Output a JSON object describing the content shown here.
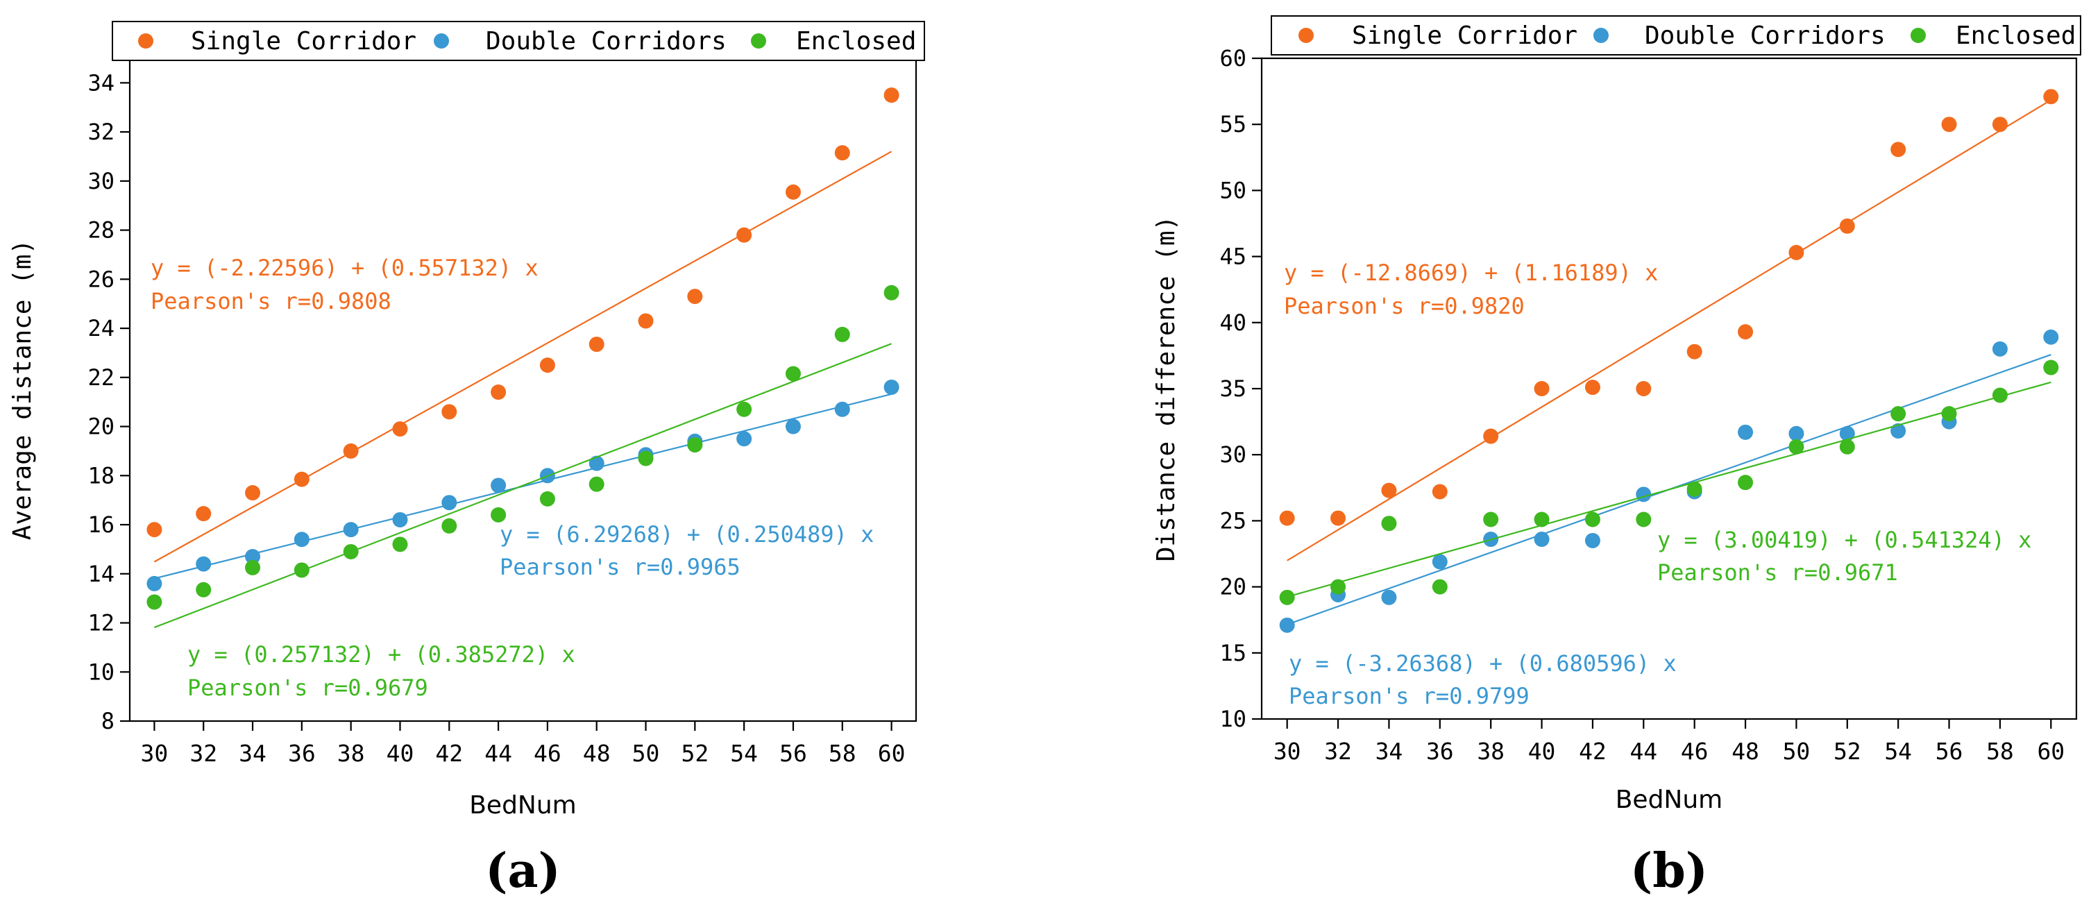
{
  "colors": {
    "single": "#f26b1d",
    "double": "#3a98d2",
    "enclosed": "#3db81e",
    "axis": "#000000"
  },
  "legend_labels": {
    "single": "Single Corridor",
    "double": "Double Corridors",
    "enclosed": "Enclosed"
  },
  "chart_data": [
    {
      "panel_label": "(a)",
      "type": "scatter",
      "title": "",
      "xlabel": "BedNum",
      "ylabel": "Average distance (m)",
      "xlim": [
        29,
        61
      ],
      "ylim": [
        8,
        35
      ],
      "xticks": [
        30,
        32,
        34,
        36,
        38,
        40,
        42,
        44,
        46,
        48,
        50,
        52,
        54,
        56,
        58,
        60
      ],
      "yticks": [
        8,
        10,
        12,
        14,
        16,
        18,
        20,
        22,
        24,
        26,
        28,
        30,
        32,
        34
      ],
      "grid": false,
      "legend_position": "top",
      "x": [
        30,
        32,
        34,
        36,
        38,
        40,
        42,
        44,
        46,
        48,
        50,
        52,
        54,
        56,
        58,
        60
      ],
      "series": [
        {
          "key": "single",
          "name": "Single Corridor",
          "values": [
            15.8,
            16.45,
            17.3,
            17.85,
            19.0,
            19.9,
            20.6,
            21.4,
            22.5,
            23.35,
            24.3,
            25.3,
            27.8,
            29.55,
            31.15,
            33.5
          ],
          "fit": {
            "intercept": -2.22596,
            "slope": 0.557132
          },
          "equation": "y = (-2.22596) + (0.557132) x",
          "pearson": "Pearson's r=0.9808"
        },
        {
          "key": "double",
          "name": "Double Corridors",
          "values": [
            13.6,
            14.4,
            14.7,
            15.4,
            15.8,
            16.2,
            16.9,
            17.6,
            18.0,
            18.5,
            18.85,
            19.4,
            19.5,
            20.0,
            20.7,
            21.6
          ],
          "fit": {
            "intercept": 6.29268,
            "slope": 0.250489
          },
          "equation": "y = (6.29268) + (0.250489) x",
          "pearson": "Pearson's r=0.9965"
        },
        {
          "key": "enclosed",
          "name": "Enclosed",
          "values": [
            12.85,
            13.35,
            14.25,
            14.15,
            14.9,
            15.2,
            15.95,
            16.4,
            17.05,
            17.65,
            18.7,
            19.25,
            20.7,
            22.15,
            23.75,
            25.45
          ],
          "fit": {
            "intercept": 0.257132,
            "slope": 0.385272
          },
          "equation": "y = (0.257132) + (0.385272) x",
          "pearson": "Pearson's r=0.9679"
        }
      ]
    },
    {
      "panel_label": "(b)",
      "type": "scatter",
      "title": "",
      "xlabel": "BedNum",
      "ylabel": "Distance difference (m)",
      "xlim": [
        29,
        61
      ],
      "ylim": [
        10,
        60
      ],
      "xticks": [
        30,
        32,
        34,
        36,
        38,
        40,
        42,
        44,
        46,
        48,
        50,
        52,
        54,
        56,
        58,
        60
      ],
      "yticks": [
        10,
        15,
        20,
        25,
        30,
        35,
        40,
        45,
        50,
        55,
        60
      ],
      "grid": false,
      "legend_position": "top",
      "x": [
        30,
        32,
        34,
        36,
        38,
        40,
        42,
        44,
        46,
        48,
        50,
        52,
        54,
        56,
        58,
        60
      ],
      "series": [
        {
          "key": "single",
          "name": "Single Corridor",
          "values": [
            25.2,
            25.2,
            27.3,
            27.2,
            31.4,
            35.0,
            35.1,
            35.0,
            37.8,
            39.3,
            45.3,
            47.3,
            53.1,
            55.0,
            55.0,
            57.1
          ],
          "fit": {
            "intercept": -12.8669,
            "slope": 1.16189
          },
          "equation": "y = (-12.8669) + (1.16189) x",
          "pearson": "Pearson's r=0.9820"
        },
        {
          "key": "double",
          "name": "Double Corridors",
          "values": [
            17.1,
            19.4,
            19.2,
            21.9,
            23.6,
            23.6,
            23.5,
            27.0,
            27.2,
            31.7,
            31.6,
            31.6,
            31.8,
            32.5,
            38.0,
            38.9
          ],
          "fit": {
            "intercept": -3.26368,
            "slope": 0.680596
          },
          "equation": "y = (-3.26368) + (0.680596) x",
          "pearson": "Pearson's r=0.9799"
        },
        {
          "key": "enclosed",
          "name": "Enclosed",
          "values": [
            19.2,
            20.0,
            24.8,
            20.0,
            25.1,
            25.1,
            25.1,
            25.1,
            27.4,
            27.9,
            30.6,
            30.6,
            33.1,
            33.1,
            34.5,
            36.6
          ],
          "fit": {
            "intercept": 3.00419,
            "slope": 0.541324
          },
          "equation": "y = (3.00419) + (0.541324) x",
          "pearson": "Pearson's r=0.9671"
        }
      ]
    }
  ]
}
